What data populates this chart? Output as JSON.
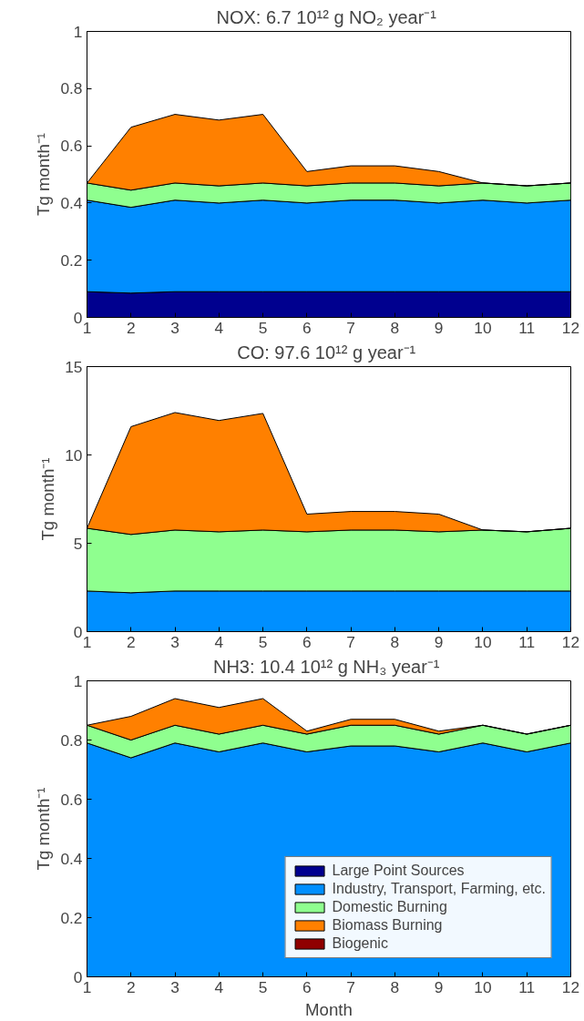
{
  "chart_data": [
    {
      "type": "area",
      "stacked": true,
      "title": "NOX:  6.7 10¹² g NO₂ year⁻¹",
      "ylabel": "Tg month⁻¹",
      "x": [
        1,
        2,
        3,
        4,
        5,
        6,
        7,
        8,
        9,
        10,
        11,
        12
      ],
      "xlim": [
        1,
        12
      ],
      "xticks": [
        1,
        2,
        3,
        4,
        5,
        6,
        7,
        8,
        9,
        10,
        11,
        12
      ],
      "ylim": [
        0,
        1
      ],
      "yticks": [
        0,
        {
          "value": 0.2,
          "label": "0.2"
        },
        {
          "value": 0.4,
          "label": "0.4"
        },
        {
          "value": 0.6,
          "label": "0.6"
        },
        {
          "value": 0.8,
          "label": "0.8"
        },
        1
      ],
      "grid": false,
      "legend": false,
      "series": [
        {
          "color": "#00008f",
          "values": [
            0.09,
            0.085,
            0.09,
            0.09,
            0.09,
            0.09,
            0.09,
            0.09,
            0.09,
            0.09,
            0.09,
            0.09
          ]
        },
        {
          "color": "#008fff",
          "values": [
            0.32,
            0.3,
            0.32,
            0.31,
            0.32,
            0.31,
            0.32,
            0.32,
            0.31,
            0.32,
            0.31,
            0.32
          ]
        },
        {
          "color": "#8fff8f",
          "values": [
            0.06,
            0.06,
            0.06,
            0.06,
            0.06,
            0.06,
            0.06,
            0.06,
            0.06,
            0.06,
            0.06,
            0.06
          ]
        },
        {
          "color": "#ff8000",
          "values": [
            0,
            0.22,
            0.24,
            0.23,
            0.24,
            0.05,
            0.06,
            0.06,
            0.05,
            0,
            0,
            0
          ]
        }
      ]
    },
    {
      "type": "area",
      "stacked": true,
      "title": "CO:  97.6 10¹² g year⁻¹",
      "ylabel": "Tg month⁻¹",
      "x": [
        1,
        2,
        3,
        4,
        5,
        6,
        7,
        8,
        9,
        10,
        11,
        12
      ],
      "xlim": [
        1,
        12
      ],
      "xticks": [
        1,
        2,
        3,
        4,
        5,
        6,
        7,
        8,
        9,
        10,
        11,
        12
      ],
      "ylim": [
        0,
        15
      ],
      "yticks": [
        0,
        5,
        10,
        15
      ],
      "grid": false,
      "legend": false,
      "series": [
        {
          "color": "#008fff",
          "values": [
            2.3,
            2.2,
            2.3,
            2.3,
            2.3,
            2.3,
            2.3,
            2.3,
            2.3,
            2.3,
            2.3,
            2.3
          ]
        },
        {
          "color": "#8fff8f",
          "values": [
            3.55,
            3.3,
            3.45,
            3.35,
            3.45,
            3.35,
            3.45,
            3.45,
            3.35,
            3.45,
            3.35,
            3.55
          ]
        },
        {
          "color": "#ff8000",
          "values": [
            0,
            6.1,
            6.65,
            6.3,
            6.6,
            1.0,
            1.05,
            1.05,
            1.0,
            0,
            0,
            0
          ]
        }
      ]
    },
    {
      "type": "area",
      "stacked": true,
      "title": "NH3:  10.4 10¹² g NH₃ year⁻¹",
      "xlabel": "Month",
      "ylabel": "Tg month⁻¹",
      "x": [
        1,
        2,
        3,
        4,
        5,
        6,
        7,
        8,
        9,
        10,
        11,
        12
      ],
      "xlim": [
        1,
        12
      ],
      "xticks": [
        1,
        2,
        3,
        4,
        5,
        6,
        7,
        8,
        9,
        10,
        11,
        12
      ],
      "ylim": [
        0,
        1
      ],
      "yticks": [
        0,
        {
          "value": 0.2,
          "label": "0.2"
        },
        {
          "value": 0.4,
          "label": "0.4"
        },
        {
          "value": 0.6,
          "label": "0.6"
        },
        {
          "value": 0.8,
          "label": "0.8"
        },
        1
      ],
      "grid": false,
      "legend": "bottom right",
      "series": [
        {
          "name": "Large Point Sources",
          "color": "#00008f",
          "values": [
            null,
            null,
            null,
            null,
            null,
            null,
            null,
            null,
            null,
            null,
            null,
            null
          ]
        },
        {
          "name": "Industry, Transport, Farming, etc.",
          "color": "#008fff",
          "values": [
            0.79,
            0.74,
            0.79,
            0.76,
            0.79,
            0.76,
            0.78,
            0.78,
            0.76,
            0.79,
            0.76,
            0.79
          ]
        },
        {
          "name": "Domestic Burning",
          "color": "#8fff8f",
          "values": [
            0.06,
            0.06,
            0.06,
            0.06,
            0.06,
            0.06,
            0.07,
            0.07,
            0.06,
            0.06,
            0.06,
            0.06
          ]
        },
        {
          "name": "Biomass Burning",
          "color": "#ff8000",
          "values": [
            0,
            0.08,
            0.09,
            0.09,
            0.09,
            0.01,
            0.02,
            0.02,
            0.01,
            0,
            0,
            0
          ]
        },
        {
          "name": "Biogenic",
          "color": "#8f0000",
          "values": [
            null,
            null,
            null,
            null,
            null,
            null,
            null,
            null,
            null,
            null,
            null,
            null
          ]
        }
      ]
    }
  ]
}
